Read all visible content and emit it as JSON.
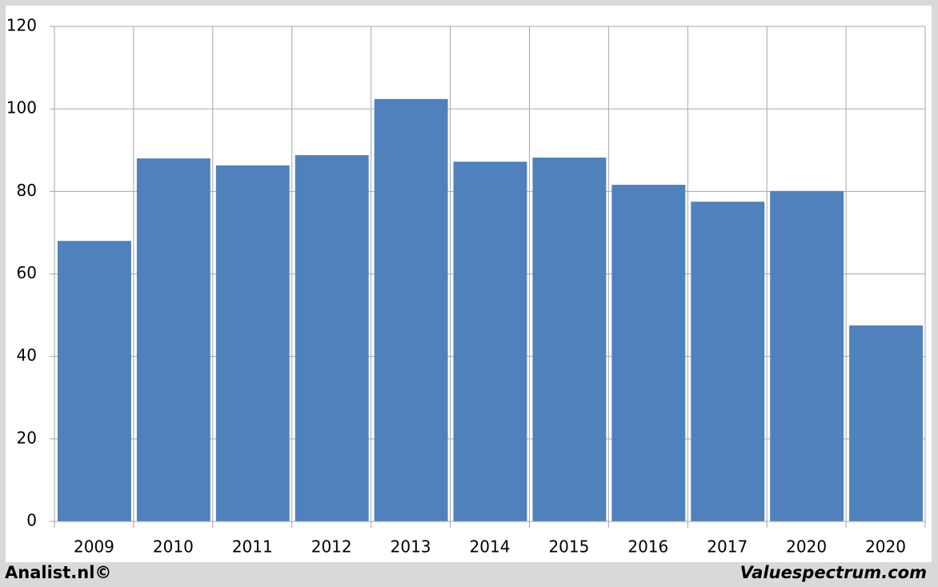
{
  "chart_data": {
    "type": "bar",
    "categories": [
      "2009",
      "2010",
      "2011",
      "2012",
      "2013",
      "2014",
      "2015",
      "2016",
      "2017",
      "2020",
      "2020"
    ],
    "values": [
      68,
      88,
      86.3,
      88.8,
      102.4,
      87.2,
      88.2,
      81.6,
      77.5,
      80.1,
      47.5
    ],
    "color": "#4f81bd",
    "ylim": [
      0,
      120
    ],
    "yticks": [
      0,
      20,
      40,
      60,
      80,
      100,
      120
    ],
    "grid": true
  },
  "footer": {
    "left": "Analist.nl©",
    "right": "Valuespectrum.com"
  }
}
